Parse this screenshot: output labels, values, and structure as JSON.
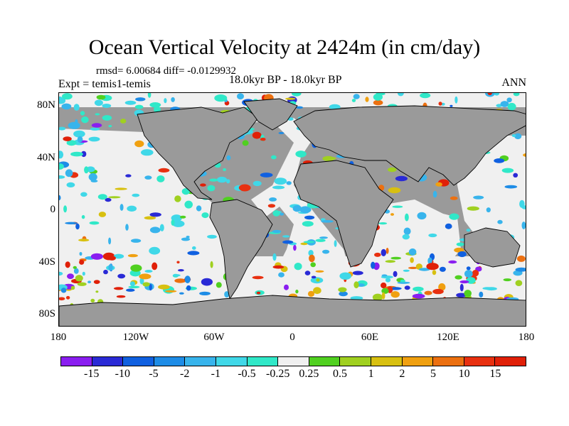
{
  "title": "Ocean Vertical Velocity at 2424m (in cm/day)",
  "stats": "rmsd= 6.00684 diff= -0.0129932",
  "expt": "Expt = temis1-temis",
  "period": "18.0kyr BP - 18.0kyr BP",
  "season": "ANN",
  "lat_labels": [
    "80N",
    "40N",
    "0",
    "40S",
    "80S"
  ],
  "lon_labels": [
    "180",
    "120W",
    "60W",
    "0",
    "60E",
    "120E",
    "180"
  ],
  "colorbar": {
    "labels": [
      "-15",
      "-10",
      "-5",
      "-2",
      "-1",
      "-0.5",
      "-0.25",
      "0.25",
      "0.5",
      "1",
      "2",
      "5",
      "10",
      "15"
    ],
    "colors": [
      "#8a1ef0",
      "#2a2ad6",
      "#1060e0",
      "#1e8ce6",
      "#38b4ec",
      "#40d8e8",
      "#30e8c8",
      "#f0f0f0",
      "#50d020",
      "#a0d020",
      "#d8c010",
      "#f0a010",
      "#ec7010",
      "#e83010",
      "#e02008"
    ]
  },
  "map_colors": {
    "land": "#9a9a9a",
    "ocean": "#f0f0f0"
  }
}
